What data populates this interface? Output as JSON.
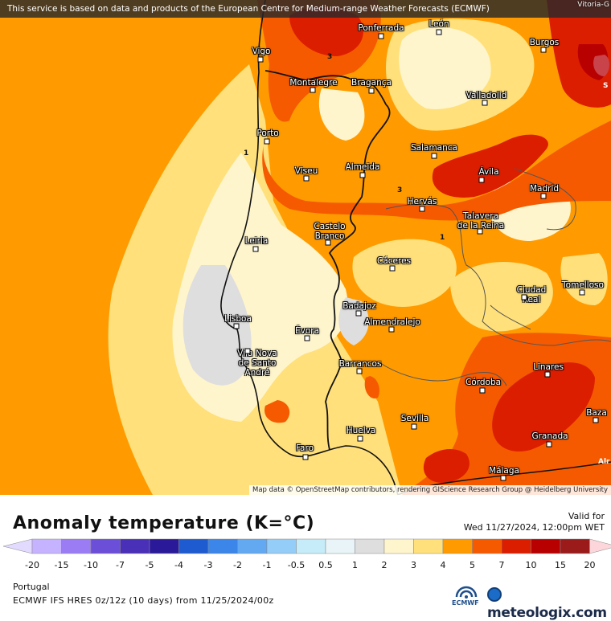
{
  "map": {
    "banner": "This service is based on data and products of the European Centre for Medium-range Weather Forecasts (ECMWF)",
    "attribution": "Map data © OpenStreetMap contributors, rendering GIScience Research Group @ Heidelberg University",
    "corner_city": "Vitoria-G",
    "cities": [
      "Ponferrada",
      "León",
      "Vigo",
      "Burgos",
      "Montalegre",
      "Bragança",
      "Valladolid",
      "Porto",
      "Salamanca",
      "Viseu",
      "Almeida",
      "Ávila",
      "Madrid",
      "Hervás",
      "Talavera\nde la Reina",
      "Leiria",
      "Castelo\nBranco",
      "Cáceres",
      "Ciudad\nReal",
      "Tomelloso",
      "Badajoz",
      "Lisboa",
      "Évora",
      "Almendralejo",
      "Vila Nova\nde Santo\nAndré",
      "Barrancos",
      "Linares",
      "Córdoba",
      "Baza",
      "Sevilla",
      "Huelva",
      "Granada",
      "Faro",
      "Málaga"
    ],
    "contour_labels": [
      "1",
      "3",
      "3",
      "1",
      "S",
      "Alr"
    ]
  },
  "legend": {
    "title": "Anomaly temperature (K=°C)",
    "valid_label": "Valid for",
    "valid_date": "Wed 11/27/2024, 12:00pm WET",
    "ticks": [
      "-20",
      "-15",
      "-10",
      "-7",
      "-5",
      "-4",
      "-3",
      "-2",
      "-1",
      "-0.5",
      "0.5",
      "1",
      "2",
      "3",
      "4",
      "5",
      "7",
      "10",
      "15",
      "20"
    ],
    "colors": [
      "#c6b3ff",
      "#9b7cf5",
      "#6c4fd8",
      "#4a2fb8",
      "#2a1a9a",
      "#1e5bd0",
      "#3b86e8",
      "#62a9f2",
      "#94cdf7",
      "#c6ecf9",
      "#e9f4f8",
      "#dedede",
      "#fff5cc",
      "#ffe07a",
      "#ff9b00",
      "#f55a00",
      "#dc1e00",
      "#b80000",
      "#9b1a1a",
      "#c8444a",
      "#ea7878",
      "#f7a9a9",
      "#fcd6da"
    ]
  },
  "footer": {
    "region": "Portugal",
    "model": "ECMWF IFS HRES 0z/12z (10 days) from 11/25/2024/00z",
    "ecmwf_label": "ECMWF",
    "brand": "meteologix.com"
  }
}
